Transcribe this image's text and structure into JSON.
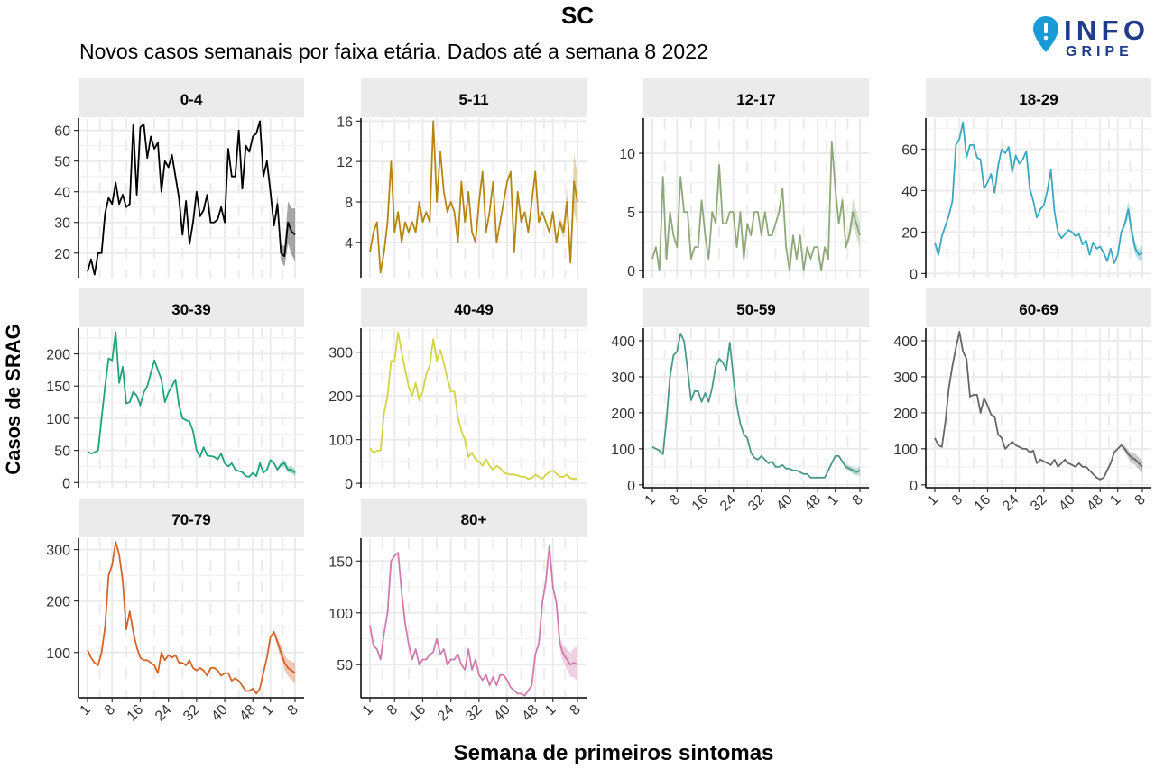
{
  "chart_data": {
    "type": "line",
    "title": "SC",
    "subtitle": "Novos casos semanais por faixa etária. Dados até a semana 8 2022",
    "xlabel": "Semana de primeiros sintomas",
    "ylabel": "Casos de SRAG",
    "x_tick_labels": [
      "1",
      "8",
      "16",
      "24",
      "32",
      "40",
      "48",
      "1",
      "8"
    ],
    "x_tick_weeks": [
      "2021-01",
      "2021-08",
      "2021-16",
      "2021-24",
      "2021-32",
      "2021-40",
      "2021-48",
      "2022-01",
      "2022-08"
    ],
    "x_range": [
      "2021-01",
      "2022-08"
    ],
    "grid": true,
    "logo_text": [
      "INFO",
      "GRIPE"
    ],
    "panels": [
      {
        "name": "0-4",
        "color": "#000000",
        "ylim": [
          12,
          64
        ],
        "yticks": [
          20,
          30,
          40,
          50,
          60
        ],
        "values": [
          14,
          18,
          13,
          20,
          20,
          33,
          38,
          36,
          43,
          36,
          39,
          35,
          36,
          62,
          39,
          61,
          62,
          51,
          58,
          54,
          56,
          40,
          50,
          48,
          52,
          45,
          38,
          26,
          37,
          23,
          30,
          40,
          32,
          34,
          39,
          30,
          30,
          31,
          35,
          30,
          54,
          45,
          45,
          60,
          41,
          55,
          53,
          58,
          59,
          63,
          45,
          50,
          40,
          29,
          36,
          20,
          19,
          30,
          27,
          26
        ]
      },
      {
        "name": "5-11",
        "color": "#b5850f",
        "ylim": [
          0.5,
          16.3
        ],
        "yticks": [
          4,
          8,
          12,
          16
        ],
        "values": [
          3,
          5,
          6,
          1,
          3,
          6,
          12,
          5,
          7,
          4,
          6,
          5,
          6,
          5,
          8,
          6,
          7,
          6,
          16,
          8,
          13,
          9,
          7,
          8,
          7,
          4,
          10,
          6,
          9,
          5,
          4,
          8,
          11,
          5,
          7,
          10,
          4,
          6,
          8,
          10,
          11,
          3,
          9,
          6,
          7,
          5,
          8,
          11,
          6,
          7,
          6,
          5,
          7,
          4,
          6,
          5,
          8,
          2,
          10,
          8
        ]
      },
      {
        "name": "12-17",
        "color": "#8ea87a",
        "ylim": [
          -0.6,
          13
        ],
        "yticks": [
          0,
          5,
          10
        ],
        "values": [
          1,
          2,
          0,
          8,
          1,
          5,
          3,
          2,
          8,
          5,
          5,
          1,
          2,
          2,
          6,
          3,
          1,
          5,
          4,
          9,
          4,
          4,
          5,
          5,
          2,
          5,
          1,
          4,
          3,
          5,
          5,
          3,
          5,
          3,
          3,
          4,
          5,
          7,
          2,
          0,
          3,
          1,
          3,
          0,
          2,
          1,
          2,
          2,
          0,
          2,
          1,
          11,
          7,
          4,
          6,
          2,
          3,
          5,
          4,
          3
        ]
      },
      {
        "name": "18-29",
        "color": "#3aa8c1",
        "ylim": [
          -2,
          75
        ],
        "yticks": [
          0,
          20,
          40,
          60
        ],
        "values": [
          15,
          9,
          18,
          23,
          28,
          35,
          62,
          65,
          73,
          56,
          62,
          62,
          56,
          55,
          41,
          44,
          48,
          39,
          52,
          60,
          58,
          61,
          49,
          57,
          53,
          55,
          59,
          41,
          35,
          27,
          31,
          33,
          40,
          50,
          30,
          20,
          17,
          19,
          21,
          20,
          18,
          19,
          14,
          16,
          9,
          15,
          12,
          13,
          10,
          6,
          12,
          5,
          9,
          20,
          24,
          31,
          20,
          12,
          9,
          10
        ]
      },
      {
        "name": "30-39",
        "color": "#1fa37a",
        "ylim": [
          -8,
          240
        ],
        "yticks": [
          0,
          50,
          100,
          150,
          200
        ],
        "values": [
          48,
          45,
          47,
          50,
          100,
          150,
          193,
          190,
          234,
          155,
          180,
          123,
          125,
          141,
          135,
          120,
          140,
          150,
          170,
          190,
          175,
          160,
          125,
          140,
          150,
          160,
          120,
          100,
          97,
          95,
          80,
          50,
          40,
          55,
          42,
          41,
          40,
          36,
          45,
          30,
          25,
          30,
          20,
          18,
          16,
          10,
          9,
          15,
          10,
          30,
          15,
          20,
          35,
          30,
          20,
          28,
          30,
          20,
          20,
          15
        ]
      },
      {
        "name": "40-49",
        "color": "#d2d445",
        "ylim": [
          -10,
          355
        ],
        "yticks": [
          0,
          100,
          200,
          300
        ],
        "values": [
          80,
          70,
          75,
          75,
          160,
          200,
          280,
          280,
          345,
          300,
          260,
          220,
          200,
          230,
          190,
          210,
          250,
          270,
          330,
          280,
          305,
          275,
          240,
          210,
          210,
          150,
          120,
          100,
          60,
          70,
          55,
          50,
          40,
          55,
          40,
          30,
          40,
          35,
          25,
          22,
          20,
          20,
          18,
          15,
          15,
          10,
          12,
          20,
          15,
          10,
          20,
          25,
          30,
          22,
          15,
          15,
          20,
          12,
          10,
          10
        ]
      },
      {
        "name": "50-59",
        "color": "#4a9a8a",
        "ylim": [
          -8,
          435
        ],
        "yticks": [
          0,
          100,
          200,
          300,
          400
        ],
        "values": [
          105,
          100,
          95,
          85,
          180,
          300,
          360,
          370,
          420,
          400,
          320,
          235,
          260,
          260,
          230,
          255,
          230,
          270,
          330,
          350,
          340,
          320,
          395,
          300,
          220,
          170,
          140,
          130,
          90,
          75,
          70,
          80,
          70,
          60,
          65,
          50,
          50,
          55,
          45,
          45,
          40,
          40,
          35,
          30,
          30,
          20,
          20,
          20,
          20,
          20,
          40,
          60,
          80,
          80,
          65,
          50,
          45,
          40,
          35,
          40
        ]
      },
      {
        "name": "60-69",
        "color": "#666666",
        "ylim": [
          -8,
          435
        ],
        "yticks": [
          0,
          100,
          200,
          300,
          400
        ],
        "values": [
          130,
          110,
          105,
          175,
          270,
          330,
          380,
          425,
          370,
          350,
          245,
          250,
          250,
          200,
          240,
          220,
          195,
          190,
          140,
          130,
          100,
          110,
          120,
          110,
          105,
          100,
          100,
          90,
          95,
          60,
          70,
          65,
          60,
          55,
          70,
          50,
          60,
          70,
          60,
          55,
          50,
          60,
          50,
          50,
          40,
          30,
          20,
          15,
          20,
          40,
          60,
          90,
          100,
          110,
          100,
          85,
          75,
          70,
          60,
          50
        ]
      },
      {
        "name": "70-79",
        "color": "#d4642a",
        "ylim": [
          12,
          322
        ],
        "yticks": [
          100,
          200,
          300
        ],
        "values": [
          105,
          90,
          80,
          75,
          100,
          150,
          250,
          270,
          315,
          290,
          240,
          145,
          180,
          140,
          110,
          90,
          85,
          85,
          80,
          75,
          60,
          100,
          85,
          95,
          90,
          95,
          80,
          80,
          75,
          85,
          70,
          65,
          70,
          65,
          55,
          70,
          70,
          65,
          55,
          60,
          60,
          45,
          50,
          45,
          35,
          25,
          25,
          30,
          20,
          30,
          60,
          90,
          130,
          140,
          120,
          100,
          80,
          70,
          65,
          60
        ]
      },
      {
        "name": "80+",
        "color": "#d07aae",
        "ylim": [
          18,
          172
        ],
        "yticks": [
          50,
          100,
          150
        ],
        "values": [
          88,
          68,
          65,
          55,
          80,
          100,
          150,
          155,
          158,
          120,
          90,
          70,
          55,
          65,
          50,
          55,
          55,
          60,
          62,
          75,
          60,
          65,
          50,
          55,
          55,
          60,
          50,
          45,
          65,
          45,
          55,
          40,
          35,
          40,
          30,
          38,
          30,
          40,
          40,
          35,
          28,
          25,
          22,
          22,
          20,
          25,
          30,
          60,
          70,
          110,
          130,
          165,
          125,
          110,
          70,
          60,
          55,
          50,
          52,
          50
        ]
      }
    ]
  },
  "logo": {
    "brand_color": "#1a9ad6",
    "text_color": "#1f3c88"
  }
}
